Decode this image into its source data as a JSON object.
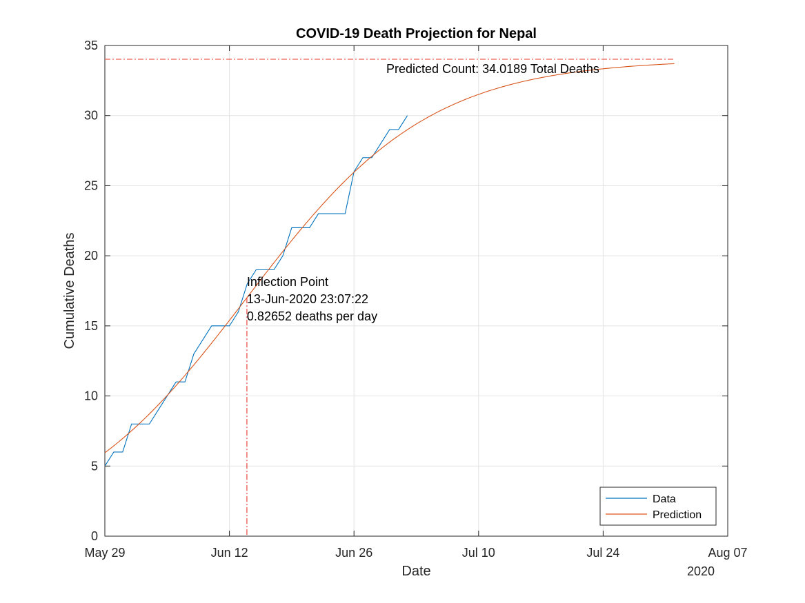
{
  "chart_data": {
    "type": "line",
    "title": "COVID-19 Death Projection for Nepal",
    "xlabel": "Date",
    "ylabel": "Cumulative Deaths",
    "year_label": "2020",
    "xlim": [
      "2020-05-29",
      "2020-08-07"
    ],
    "ylim": [
      0,
      35
    ],
    "x_ticks": [
      {
        "date": "2020-05-29",
        "label": "May 29"
      },
      {
        "date": "2020-06-12",
        "label": "Jun 12"
      },
      {
        "date": "2020-06-26",
        "label": "Jun 26"
      },
      {
        "date": "2020-07-10",
        "label": "Jul 10"
      },
      {
        "date": "2020-07-24",
        "label": "Jul 24"
      },
      {
        "date": "2020-08-07",
        "label": "Aug 07"
      }
    ],
    "y_ticks": [
      0,
      5,
      10,
      15,
      20,
      25,
      30,
      35
    ],
    "grid": true,
    "legend_position": "bottom-right",
    "series": [
      {
        "name": "Data",
        "color": "#0072BD",
        "style": "step",
        "points": [
          {
            "x": "2020-05-29",
            "y": 5
          },
          {
            "x": "2020-05-30",
            "y": 6
          },
          {
            "x": "2020-05-31",
            "y": 6
          },
          {
            "x": "2020-06-01",
            "y": 8
          },
          {
            "x": "2020-06-02",
            "y": 8
          },
          {
            "x": "2020-06-03",
            "y": 8
          },
          {
            "x": "2020-06-04",
            "y": 9
          },
          {
            "x": "2020-06-05",
            "y": 10
          },
          {
            "x": "2020-06-06",
            "y": 11
          },
          {
            "x": "2020-06-07",
            "y": 11
          },
          {
            "x": "2020-06-08",
            "y": 13
          },
          {
            "x": "2020-06-09",
            "y": 14
          },
          {
            "x": "2020-06-10",
            "y": 15
          },
          {
            "x": "2020-06-11",
            "y": 15
          },
          {
            "x": "2020-06-12",
            "y": 15
          },
          {
            "x": "2020-06-13",
            "y": 16
          },
          {
            "x": "2020-06-14",
            "y": 18
          },
          {
            "x": "2020-06-15",
            "y": 19
          },
          {
            "x": "2020-06-16",
            "y": 19
          },
          {
            "x": "2020-06-17",
            "y": 19
          },
          {
            "x": "2020-06-18",
            "y": 20
          },
          {
            "x": "2020-06-19",
            "y": 22
          },
          {
            "x": "2020-06-20",
            "y": 22
          },
          {
            "x": "2020-06-21",
            "y": 22
          },
          {
            "x": "2020-06-22",
            "y": 23
          },
          {
            "x": "2020-06-23",
            "y": 23
          },
          {
            "x": "2020-06-24",
            "y": 23
          },
          {
            "x": "2020-06-25",
            "y": 23
          },
          {
            "x": "2020-06-26",
            "y": 26
          },
          {
            "x": "2020-06-27",
            "y": 27
          },
          {
            "x": "2020-06-28",
            "y": 27
          },
          {
            "x": "2020-06-29",
            "y": 28
          },
          {
            "x": "2020-06-30",
            "y": 29
          },
          {
            "x": "2020-07-01",
            "y": 29
          },
          {
            "x": "2020-07-02",
            "y": 30
          }
        ]
      },
      {
        "name": "Prediction",
        "color": "#D95319",
        "style": "logistic",
        "model": {
          "K": 34.0189,
          "inflection": "2020-06-13T23:07:22",
          "rate_per_day": 0.0972,
          "end": "2020-08-01"
        }
      }
    ],
    "annotations": {
      "predicted_count": {
        "value": 34.0189,
        "label": "Predicted Count: 34.0189 Total Deaths",
        "color": "#E8463A"
      },
      "inflection": {
        "date": "2020-06-13T23:07:22",
        "y": 17.0,
        "color": "#E8463A",
        "lines": [
          "Inflection Point",
          "13-Jun-2020 23:07:22",
          "0.82652 deaths per day"
        ]
      }
    }
  }
}
